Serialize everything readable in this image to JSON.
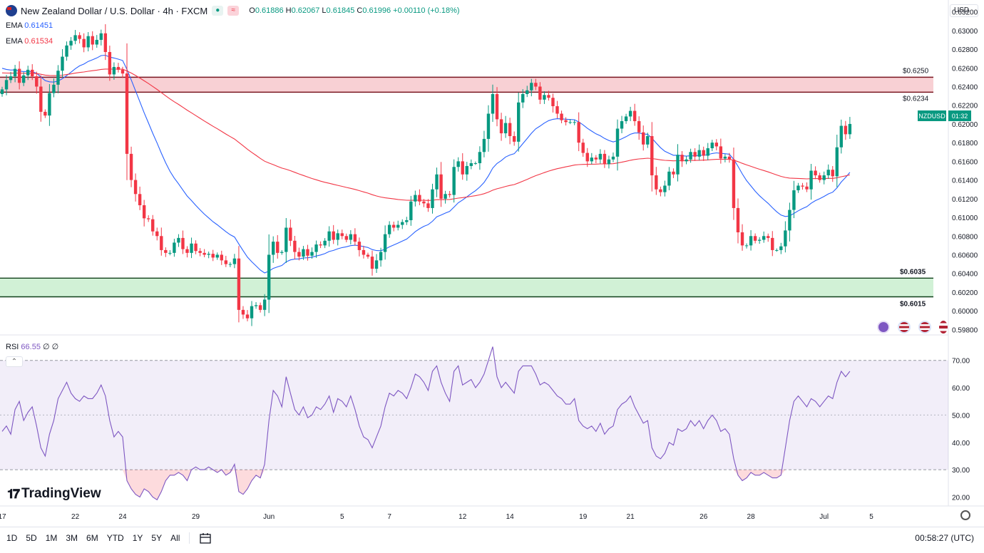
{
  "header": {
    "title": "New Zealand Dollar / U.S. Dollar · 4h · FXCM",
    "open_label": "O",
    "open": "0.61886",
    "high_label": "H",
    "high": "0.62067",
    "low_label": "L",
    "low": "0.61845",
    "close_label": "C",
    "close": "0.61996",
    "change": "+0.00110 (+0.18%)"
  },
  "indicators": {
    "ema1_label": "EMA",
    "ema1_value": "0.61451",
    "ema1_color": "#2962ff",
    "ema2_label": "EMA",
    "ema2_value": "0.61534",
    "ema2_color": "#f23645",
    "rsi_label": "RSI",
    "rsi_value": "66.55",
    "rsi_extra": "∅ ∅"
  },
  "currency_selector": "USD",
  "symbol_badge": {
    "symbol": "NZDUSD",
    "countdown": "01:32"
  },
  "levels": [
    {
      "label": "$0.6250",
      "price": 0.625
    },
    {
      "label": "$0.6234",
      "price": 0.6234
    },
    {
      "label": "$0.6035",
      "price": 0.6035
    },
    {
      "label": "$0.6015",
      "price": 0.6015
    }
  ],
  "brand": "TradingView",
  "range_buttons": [
    "1D",
    "5D",
    "1M",
    "3M",
    "6M",
    "YTD",
    "1Y",
    "5Y",
    "All"
  ],
  "clock": "00:58:27 (UTC)",
  "colors": {
    "up": "#089981",
    "down": "#f23645",
    "resistance_zone": "#f7c8cc",
    "support_zone": "#c9efcf",
    "rsi": "#7e57c2"
  },
  "chart_data": {
    "type": "candlestick",
    "title": "New Zealand Dollar / U.S. Dollar",
    "timeframe": "4h",
    "price_axis_ticks": [
      "0.63200",
      "0.63000",
      "0.62800",
      "0.62600",
      "0.62400",
      "0.62200",
      "0.62000",
      "0.61800",
      "0.61600",
      "0.61400",
      "0.61200",
      "0.61000",
      "0.60800",
      "0.60600",
      "0.60400",
      "0.60200",
      "0.60000",
      "0.59800"
    ],
    "price_tick_values": [
      0.632,
      0.63,
      0.628,
      0.626,
      0.624,
      0.622,
      0.62,
      0.618,
      0.616,
      0.614,
      0.612,
      0.61,
      0.608,
      0.606,
      0.604,
      0.602,
      0.6,
      0.598
    ],
    "ylim": [
      0.5978,
      0.633
    ],
    "x_axis_labels": [
      "17",
      "22",
      "24",
      "29",
      "Jun",
      "5",
      "7",
      "12",
      "14",
      "19",
      "21",
      "26",
      "28",
      "Jul",
      "5"
    ],
    "x_label_index": [
      0,
      17,
      28,
      45,
      62,
      79,
      90,
      107,
      118,
      135,
      146,
      163,
      174,
      191,
      202
    ],
    "close": [
      0.6237,
      0.6247,
      0.6251,
      0.6259,
      0.6244,
      0.6252,
      0.6258,
      0.6251,
      0.624,
      0.6213,
      0.6209,
      0.6233,
      0.6242,
      0.6257,
      0.6272,
      0.6284,
      0.6289,
      0.6295,
      0.6291,
      0.6282,
      0.6294,
      0.6285,
      0.629,
      0.6297,
      0.6277,
      0.6253,
      0.6261,
      0.6258,
      0.6254,
      0.6168,
      0.614,
      0.6125,
      0.6113,
      0.6099,
      0.6098,
      0.6085,
      0.608,
      0.6065,
      0.6062,
      0.6062,
      0.6073,
      0.6078,
      0.6066,
      0.6062,
      0.6072,
      0.6064,
      0.6062,
      0.606,
      0.6061,
      0.6057,
      0.606,
      0.6054,
      0.605,
      0.605,
      0.6056,
      0.6001,
      0.5996,
      0.5992,
      0.6005,
      0.6006,
      0.6001,
      0.6012,
      0.606,
      0.6074,
      0.6062,
      0.6063,
      0.6089,
      0.6075,
      0.6063,
      0.6058,
      0.6066,
      0.6059,
      0.6063,
      0.6071,
      0.607,
      0.6075,
      0.6085,
      0.6076,
      0.6083,
      0.608,
      0.6076,
      0.6082,
      0.6074,
      0.6065,
      0.606,
      0.6058,
      0.6045,
      0.6054,
      0.6063,
      0.6082,
      0.6092,
      0.6089,
      0.6092,
      0.6095,
      0.6097,
      0.6117,
      0.6124,
      0.6117,
      0.6115,
      0.611,
      0.613,
      0.6146,
      0.612,
      0.6125,
      0.6124,
      0.6154,
      0.616,
      0.6146,
      0.6155,
      0.6158,
      0.6158,
      0.617,
      0.6184,
      0.6211,
      0.6232,
      0.6205,
      0.619,
      0.6201,
      0.6187,
      0.6181,
      0.6223,
      0.6232,
      0.6236,
      0.6244,
      0.624,
      0.6226,
      0.6231,
      0.6228,
      0.6219,
      0.6211,
      0.6204,
      0.6202,
      0.6202,
      0.6202,
      0.618,
      0.6169,
      0.616,
      0.6164,
      0.6162,
      0.6168,
      0.6157,
      0.6162,
      0.6165,
      0.6195,
      0.6203,
      0.6208,
      0.6214,
      0.6203,
      0.6191,
      0.6178,
      0.6187,
      0.6145,
      0.613,
      0.6127,
      0.6134,
      0.6149,
      0.6146,
      0.6167,
      0.616,
      0.6162,
      0.617,
      0.6165,
      0.6172,
      0.6166,
      0.6174,
      0.618,
      0.6176,
      0.6163,
      0.6165,
      0.6162,
      0.611,
      0.6084,
      0.607,
      0.607,
      0.608,
      0.6075,
      0.6076,
      0.608,
      0.6078,
      0.6065,
      0.6065,
      0.6069,
      0.6086,
      0.6108,
      0.6129,
      0.6134,
      0.6133,
      0.613,
      0.615,
      0.6145,
      0.614,
      0.6145,
      0.6151,
      0.6144,
      0.6175,
      0.6198,
      0.6189,
      0.62
    ],
    "ema_fast": {
      "name": "EMA",
      "value": 0.61451
    },
    "ema_slow": {
      "name": "EMA",
      "value": 0.61534
    },
    "zones": [
      {
        "type": "resistance",
        "from": 0.6234,
        "to": 0.625
      },
      {
        "type": "support",
        "from": 0.6015,
        "to": 0.6035
      }
    ],
    "rsi": {
      "name": "RSI",
      "last": 66.55,
      "ylim": [
        17,
        78
      ],
      "ticks": [
        "70.00",
        "60.00",
        "50.00",
        "40.00",
        "30.00",
        "20.00"
      ],
      "tick_values": [
        70,
        60,
        50,
        40,
        30,
        20
      ],
      "band": [
        30,
        70
      ],
      "values": [
        44,
        46,
        43,
        52,
        55,
        48,
        51,
        53,
        46,
        38,
        35,
        43,
        48,
        56,
        59,
        62,
        58,
        56,
        55,
        57,
        56,
        56,
        58,
        61,
        57,
        48,
        42,
        44,
        42,
        26,
        23,
        21,
        20,
        23,
        22,
        20,
        19,
        22,
        26,
        28,
        28,
        29,
        28,
        26,
        30,
        31,
        30,
        30,
        31,
        30,
        29,
        30,
        28,
        29,
        32,
        22,
        21,
        23,
        26,
        28,
        27,
        32,
        48,
        59,
        57,
        53,
        64,
        58,
        52,
        50,
        53,
        49,
        50,
        53,
        52,
        54,
        57,
        51,
        56,
        55,
        53,
        57,
        52,
        46,
        42,
        41,
        38,
        42,
        46,
        53,
        58,
        57,
        59,
        58,
        56,
        60,
        65,
        64,
        62,
        59,
        66,
        68,
        62,
        58,
        55,
        66,
        68,
        61,
        62,
        63,
        60,
        62,
        65,
        70,
        75,
        64,
        60,
        62,
        60,
        58,
        66,
        68,
        68,
        68,
        65,
        61,
        62,
        61,
        59,
        57,
        56,
        54,
        54,
        56,
        48,
        46,
        45,
        46,
        44,
        47,
        43,
        45,
        46,
        52,
        54,
        55,
        57,
        53,
        50,
        47,
        48,
        38,
        35,
        34,
        36,
        40,
        39,
        45,
        44,
        45,
        48,
        46,
        48,
        45,
        48,
        50,
        48,
        44,
        45,
        43,
        34,
        28,
        26,
        27,
        29,
        28,
        28,
        29,
        28,
        27,
        27,
        28,
        38,
        48,
        55,
        57,
        55,
        53,
        56,
        55,
        53,
        55,
        57,
        56,
        62,
        66,
        64,
        66
      ]
    }
  }
}
